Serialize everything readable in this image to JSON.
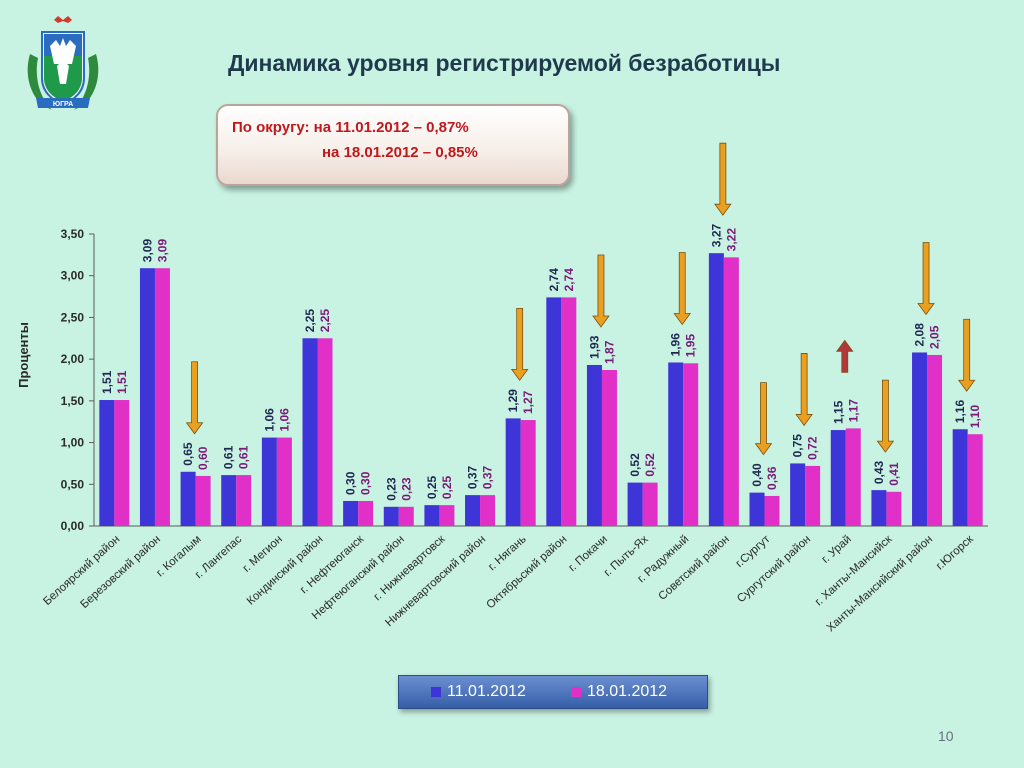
{
  "page": {
    "title": "Динамика уровня регистрируемой безработицы",
    "summary_line1": "По округу: на 11.01.2012 – 0,87%",
    "summary_line2": "на 18.01.2012 – 0,85%",
    "page_number": "10",
    "emblem_text": "ЮГРА"
  },
  "colors": {
    "series1": "#3d35d8",
    "series2": "#e030c8",
    "label1": "#1e2850",
    "label2": "#7a1a78",
    "arrow_down": "#e9a020",
    "arrow_up": "#b03a3a"
  },
  "chart_data": {
    "type": "bar",
    "ylabel": "Проценты",
    "ylim": [
      0,
      3.5
    ],
    "yticks": [
      "0,00",
      "0,50",
      "1,00",
      "1,50",
      "2,00",
      "2,50",
      "3,00",
      "3,50"
    ],
    "categories": [
      "Белоярский район",
      "Березовский район",
      "г. Когалым",
      "г. Лангепас",
      "г. Мегион",
      "Кондинский район",
      "г. Нефтеюганск",
      "Нефтеюганский район",
      "г. Нижневартовск",
      "Нижневартовский район",
      "г. Нягань",
      "Октябрьский район",
      "г. Покачи",
      "г. Пыть-Ях",
      "г. Радужный",
      "Советский район",
      "г.Сургут",
      "Сургутский район",
      "г. Урай",
      "г. Ханты-Мансийск",
      "Ханты-Мансийский район",
      "г.Югорск"
    ],
    "series": [
      {
        "name": "11.01.2012",
        "values": [
          1.51,
          3.09,
          0.65,
          0.61,
          1.06,
          2.25,
          0.3,
          0.23,
          0.25,
          0.37,
          1.29,
          2.74,
          1.93,
          0.52,
          1.96,
          3.27,
          0.4,
          0.75,
          1.15,
          0.43,
          2.08,
          1.16
        ],
        "labels": [
          "1,51",
          "3,09",
          "0,65",
          "0,61",
          "1,06",
          "2,25",
          "0,30",
          "0,23",
          "0,25",
          "0,37",
          "1,29",
          "2,74",
          "1,93",
          "0,52",
          "1,96",
          "3,27",
          "0,40",
          "0,75",
          "1,15",
          "0,43",
          "2,08",
          "1,16"
        ]
      },
      {
        "name": "18.01.2012",
        "values": [
          1.51,
          3.09,
          0.6,
          0.61,
          1.06,
          2.25,
          0.3,
          0.23,
          0.25,
          0.37,
          1.27,
          2.74,
          1.87,
          0.52,
          1.95,
          3.22,
          0.36,
          0.72,
          1.17,
          0.41,
          2.05,
          1.1
        ],
        "labels": [
          "1,51",
          "3,09",
          "0,60",
          "0,61",
          "1,06",
          "2,25",
          "0,30",
          "0,23",
          "0,25",
          "0,37",
          "1,27",
          "2,74",
          "1,87",
          "0,52",
          "1,95",
          "3,22",
          "0,36",
          "0,72",
          "1,17",
          "0,41",
          "2,05",
          "1,10"
        ]
      }
    ],
    "arrows": [
      {
        "category": "г. Когалым",
        "direction": "down"
      },
      {
        "category": "г. Нягань",
        "direction": "down"
      },
      {
        "category": "г. Покачи",
        "direction": "down"
      },
      {
        "category": "г. Радужный",
        "direction": "down"
      },
      {
        "category": "Советский район",
        "direction": "down"
      },
      {
        "category": "г.Сургут",
        "direction": "down"
      },
      {
        "category": "Сургутский район",
        "direction": "down"
      },
      {
        "category": "г. Урай",
        "direction": "up"
      },
      {
        "category": "г. Ханты-Мансийск",
        "direction": "down"
      },
      {
        "category": "Ханты-Мансийский район",
        "direction": "down"
      },
      {
        "category": "г.Югорск",
        "direction": "down"
      }
    ],
    "legend_position": "bottom"
  }
}
